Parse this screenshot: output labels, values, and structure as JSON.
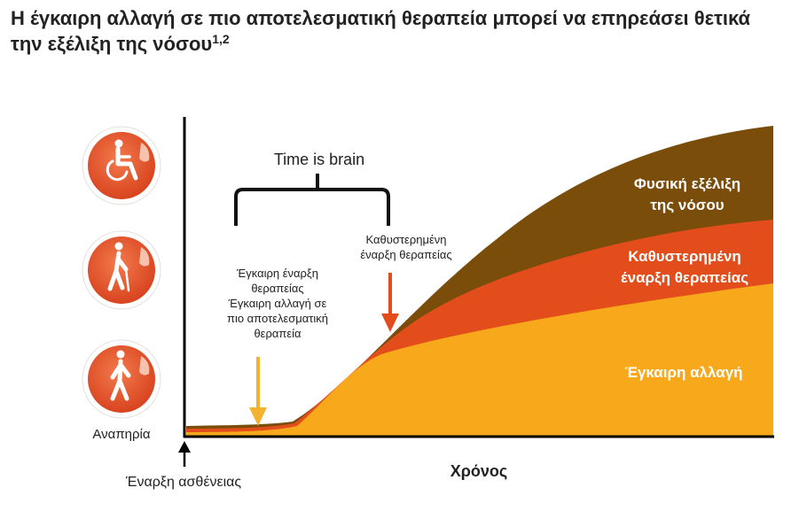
{
  "title": "Η έγκαιρη αλλαγή σε πιο αποτελεσματική θεραπεία μπορεί να επηρεάσει θετικά την εξέλιξη της νόσου",
  "title_ref": "1,2",
  "labels": {
    "time_is_brain": "Time is brain",
    "delayed_start_arrow_line1": "Καθυστερημένη",
    "delayed_start_arrow_line2": "έναρξη θεραπείας",
    "early_line1": "Έγκαιρη έναρξη",
    "early_line2": "θεραπείας",
    "early_line3": "Έγκαιρη αλλαγή σε",
    "early_line4": "πιο αποτελεσματική",
    "early_line5": "θεραπεία",
    "natural_line1": "Φυσική εξέλιξη",
    "natural_line2": "της νόσου",
    "delayed_band_line1": "Καθυστερημένη",
    "delayed_band_line2": "έναρξη θεραπείας",
    "timely_band": "Έγκαιρη αλλαγή",
    "y_axis": "Αναπηρία",
    "onset": "Έναρξη ασθένειας",
    "x_axis": "Χρόνος"
  },
  "icons": [
    "wheelchair-icon",
    "cane-walker-icon",
    "walking-person-icon"
  ],
  "colors": {
    "natural": "#7a4e0a",
    "delayed": "#e24d1b",
    "timely": "#f7a81b",
    "early_arrow": "#f5b22e",
    "delayed_arrow": "#e24d1b",
    "icon_circle": "#e5532b",
    "axis": "#000000"
  }
}
